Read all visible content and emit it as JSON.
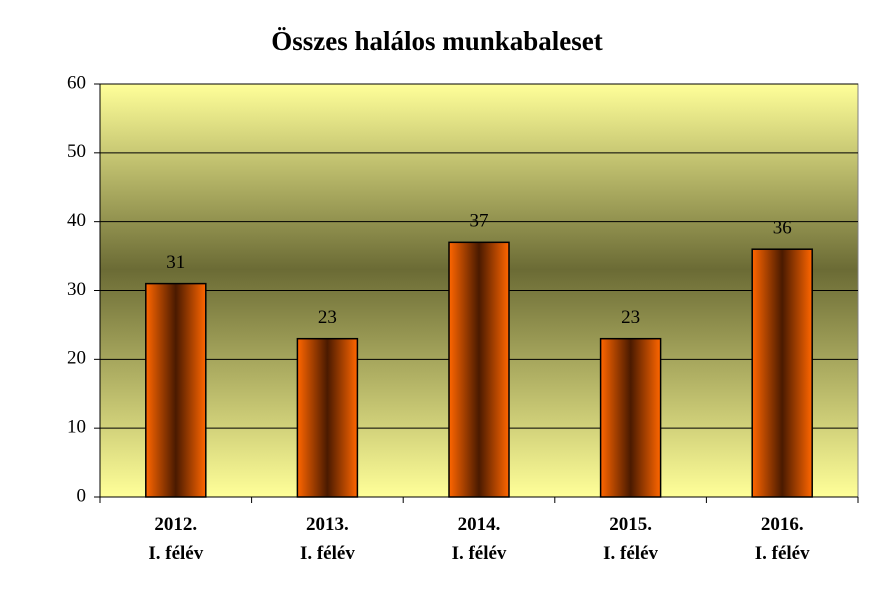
{
  "chart_data": {
    "type": "bar",
    "title": "Összes halálos munkabaleset",
    "categories": [
      "2012.\nI. félév",
      "2013.\nI. félév",
      "2014.\nI. félév",
      "2015.\nI. félév",
      "2016.\nI. félév"
    ],
    "values": [
      31,
      23,
      37,
      23,
      36
    ],
    "color": "#ff6600",
    "ylim": [
      0,
      60
    ],
    "yticks": [
      0,
      10,
      20,
      30,
      40,
      50,
      60
    ],
    "grid": true
  }
}
